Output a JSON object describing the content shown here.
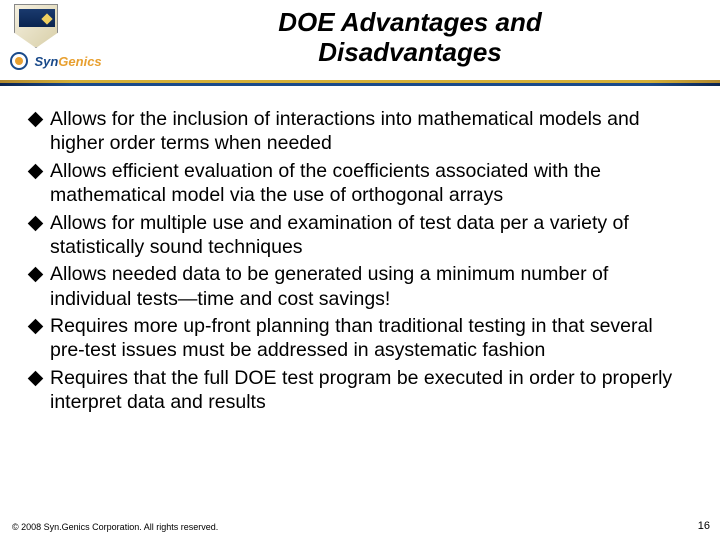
{
  "title_line1": "DOE Advantages and",
  "title_line2": "Disadvantages",
  "brand": {
    "syn": "Syn",
    "genics": "Genics"
  },
  "bullets": [
    "Allows for the inclusion of interactions into mathematical models and higher order terms when needed",
    "Allows efficient evaluation of the coefficients associated with the mathematical model via the use of orthogonal arrays",
    "Allows for multiple use and examination of test data per a variety of statistically sound techniques",
    "Allows needed data to be generated using a minimum number of individual tests—time and cost savings!",
    "Requires more up-front planning than traditional testing in that several pre-test issues must be addressed in asystematic fashion",
    "Requires that the full DOE test program be executed in order to properly interpret data and results"
  ],
  "footer": "© 2008 Syn.Genics Corporation. All rights reserved.",
  "page": "16"
}
